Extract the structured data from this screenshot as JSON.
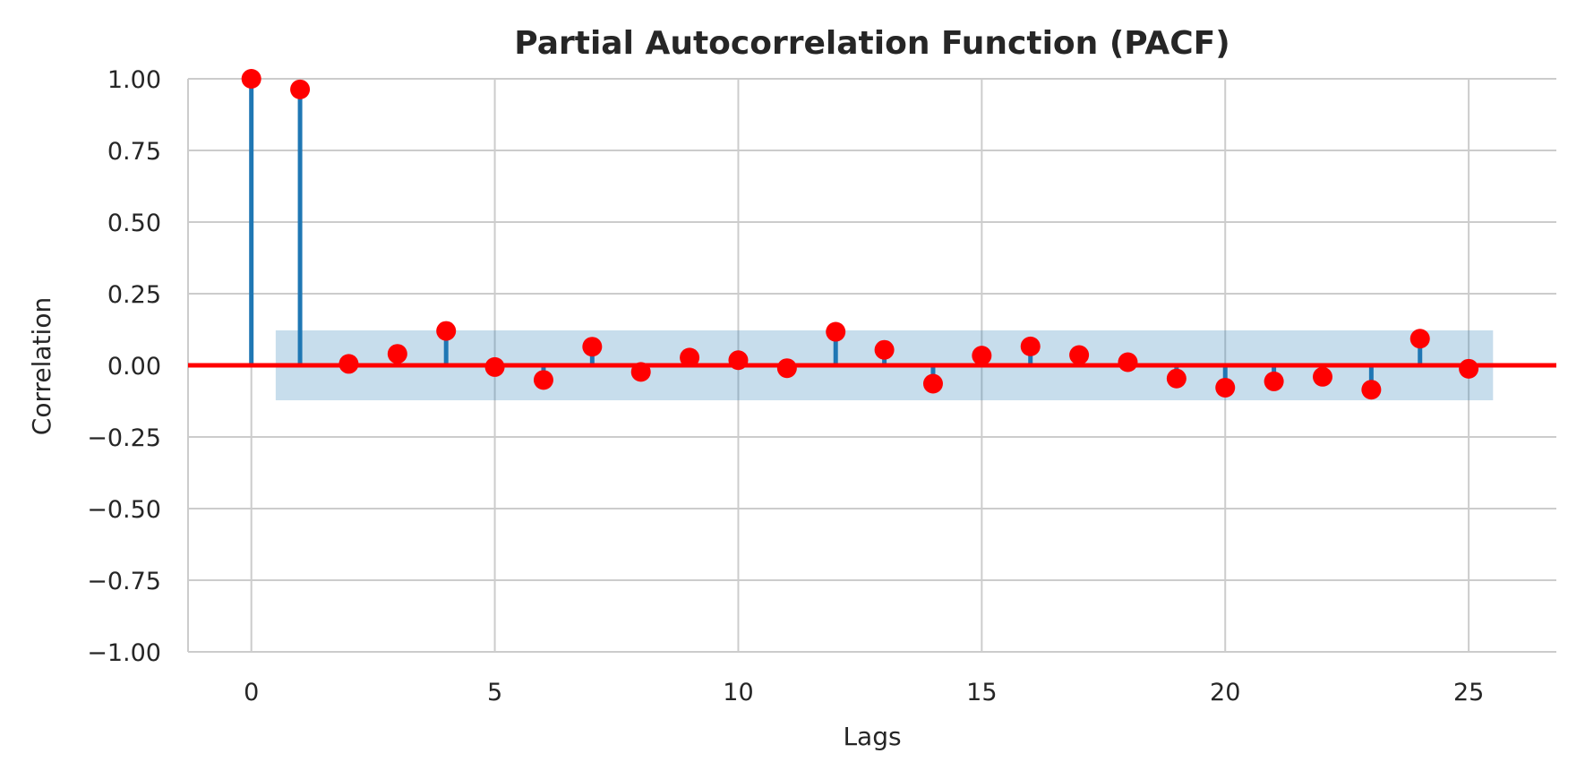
{
  "chart_data": {
    "type": "stem",
    "title": "Partial Autocorrelation Function (PACF)",
    "xlabel": "Lags",
    "ylabel": "Correlation",
    "xlim": [
      -1.3,
      26.8
    ],
    "ylim": [
      -1.0,
      1.0
    ],
    "x_ticks": [
      0,
      5,
      10,
      15,
      20,
      25
    ],
    "y_ticks": [
      -1.0,
      -0.75,
      -0.5,
      -0.25,
      0.0,
      0.25,
      0.5,
      0.75,
      1.0
    ],
    "y_tick_labels": [
      "−1.00",
      "−0.75",
      "−0.50",
      "−0.25",
      "0.00",
      "0.25",
      "0.50",
      "0.75",
      "1.00"
    ],
    "grid": true,
    "confidence_band": {
      "x_range": [
        0.5,
        25.5
      ],
      "y_range": [
        -0.122,
        0.122
      ]
    },
    "zero_line": 0.0,
    "lags": [
      0,
      1,
      2,
      3,
      4,
      5,
      6,
      7,
      8,
      9,
      10,
      11,
      12,
      13,
      14,
      15,
      16,
      17,
      18,
      19,
      20,
      21,
      22,
      23,
      24,
      25
    ],
    "values": [
      1.0,
      0.963,
      0.005,
      0.04,
      0.12,
      -0.006,
      -0.051,
      0.065,
      -0.023,
      0.027,
      0.018,
      -0.01,
      0.117,
      0.054,
      -0.064,
      0.034,
      0.066,
      0.036,
      0.011,
      -0.046,
      -0.078,
      -0.056,
      -0.04,
      -0.085,
      0.093,
      -0.012
    ],
    "colors": {
      "stem": "#1f77b4",
      "marker": "#ff0000",
      "zero_line": "#ff0000",
      "band": "#1f77b4"
    }
  }
}
